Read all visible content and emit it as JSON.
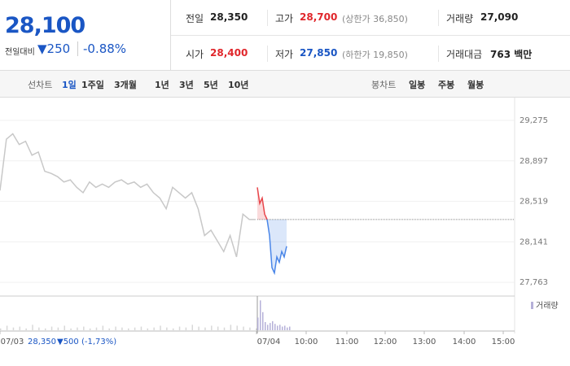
{
  "quote": {
    "price": "28,100",
    "change_label": "전일대비",
    "change": "▼250",
    "change_pct": "-0.88%"
  },
  "stats": [
    {
      "label": "전일",
      "value": "28,350",
      "tone": "plain"
    },
    {
      "label": "고가",
      "value": "28,700",
      "tone": "up",
      "extra": "(상한가 36,850)"
    },
    {
      "label": "거래량",
      "value": "27,090",
      "tone": "plain"
    },
    {
      "label": "시가",
      "value": "28,400",
      "tone": "up"
    },
    {
      "label": "저가",
      "value": "27,850",
      "tone": "down",
      "extra": "(하한가 19,850)"
    },
    {
      "label": "거래대금",
      "value": "763 백만",
      "tone": "plain"
    }
  ],
  "tabs": {
    "line_label": "선차트",
    "line_items": [
      "1일",
      "1주일",
      "3개월",
      "1년",
      "3년",
      "5년",
      "10년"
    ],
    "candle_label": "봉차트",
    "candle_items": [
      "일봉",
      "주봉",
      "월봉"
    ]
  },
  "chart_data": {
    "type": "line",
    "ylim": [
      27650,
      29450
    ],
    "yticks": [
      {
        "value": 29275,
        "label": "29,275"
      },
      {
        "value": 28897,
        "label": "28,897"
      },
      {
        "value": 28519,
        "label": "28,519"
      },
      {
        "value": 28141,
        "label": "28,141"
      },
      {
        "value": 27763,
        "label": "27,763"
      }
    ],
    "x_labels": [
      "07/03",
      "07/04",
      "10:00",
      "11:00",
      "12:00",
      "13:00",
      "14:00",
      "15:00"
    ],
    "base": 28350,
    "series": [
      {
        "name": "07/03",
        "color": "#c8c8c8",
        "values": [
          28620,
          29100,
          29150,
          29050,
          29080,
          28950,
          28980,
          28800,
          28780,
          28750,
          28700,
          28720,
          28650,
          28600,
          28700,
          28650,
          28680,
          28650,
          28700,
          28720,
          28680,
          28700,
          28650,
          28680,
          28600,
          28550,
          28450,
          28650,
          28600,
          28550,
          28600,
          28450,
          28200,
          28250,
          28150,
          28050,
          28200,
          28000,
          28400,
          28350,
          28350
        ]
      },
      {
        "name": "07/04",
        "color": "#e8454a",
        "values": [
          28650,
          28500,
          28550,
          28400,
          28350
        ]
      },
      {
        "name": "07/04",
        "color": "#4a86e8",
        "values": [
          28350,
          28200,
          27900,
          27850,
          28000,
          27950,
          28050,
          28000,
          28100
        ]
      }
    ],
    "volume": {
      "name": "거래량",
      "color": "#b5b0d8",
      "values": [
        2,
        5,
        3,
        4,
        2,
        6,
        3,
        2,
        4,
        3,
        5,
        2,
        3,
        4,
        2,
        3,
        5,
        2,
        4,
        3,
        2,
        3,
        4,
        2,
        3,
        5,
        3,
        2,
        4,
        3,
        6,
        4,
        3,
        5,
        4,
        3,
        6,
        5,
        4,
        3,
        2
      ],
      "today": [
        14,
        33,
        20,
        9,
        6,
        8,
        10,
        7,
        5,
        6,
        4,
        5,
        3,
        4
      ],
      "vlim": [
        0,
        36
      ]
    },
    "footer": {
      "price": "28,350",
      "change": "▼500",
      "pct": "(-1,73%)"
    }
  }
}
